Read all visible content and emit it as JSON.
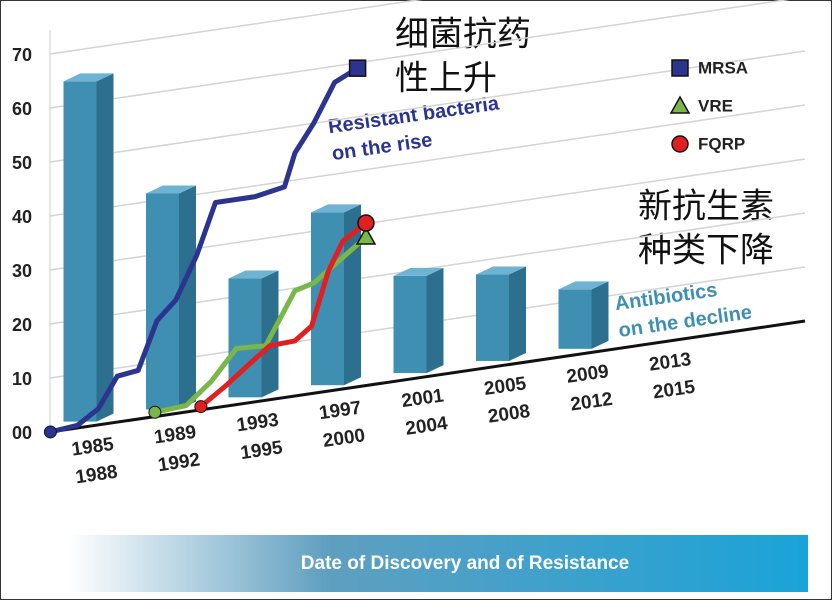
{
  "chart_data": {
    "type": "bar-line",
    "yticks": [
      {
        "value": 0,
        "label": "00"
      },
      10,
      20,
      30,
      40,
      50,
      60,
      70
    ],
    "ylim": [
      0,
      70
    ],
    "grid": true,
    "categories": [
      [
        "1985",
        "1988"
      ],
      [
        "1989",
        "1992"
      ],
      [
        "1993",
        "1995"
      ],
      [
        "1997",
        "2000"
      ],
      [
        "2001",
        "2004"
      ],
      [
        "2005",
        "2008"
      ],
      [
        "2009",
        "2012"
      ],
      [
        "2013",
        "2015"
      ]
    ],
    "bars": {
      "color": "#3f8fb3",
      "values": [
        63,
        40,
        22,
        32,
        18,
        16,
        11,
        null
      ]
    },
    "series": [
      {
        "name": "MRSA",
        "color": "#2b3590",
        "marker": "square",
        "x": [
          1983.2,
          1984.5,
          1985.5,
          1986.4,
          1987.4,
          1988.3,
          1989.2,
          1990.2,
          1991.1,
          1993,
          1994.4,
          1994.9,
          1995.8,
          1996.8,
          1997.9
        ],
        "values": [
          0,
          0.5,
          3,
          8.5,
          9,
          17.7,
          21,
          28.7,
          38,
          38,
          39,
          45,
          50,
          57,
          59
        ]
      },
      {
        "name": "VRE",
        "color": "#7ab648",
        "marker": "triangle",
        "x": [
          1988.2,
          1989.7,
          1990.9,
          1992.1,
          1993.5,
          1994.9,
          1995.8,
          1998.3
        ],
        "values": [
          0.8,
          1.2,
          5,
          10.4,
          10.1,
          19.5,
          20.4,
          27.5
        ]
      },
      {
        "name": "FQRP",
        "color": "#e02020",
        "marker": "circle",
        "x": [
          1990.4,
          1991.6,
          1992.8,
          1993.7,
          1994.9,
          1995.7,
          1996.5,
          1997.2,
          1998.3
        ],
        "values": [
          0.6,
          3.8,
          7.4,
          10,
          10.2,
          12.5,
          22.2,
          27.4,
          30.1
        ]
      }
    ],
    "annotations": {
      "resistance_cn": [
        "细菌抗药",
        "性上升"
      ],
      "resistance_en": [
        "Resistant bacteria",
        "on the rise"
      ],
      "decline_cn": [
        "新抗生素",
        "种类下降"
      ],
      "decline_en": [
        "Antibiotics",
        "on the decline"
      ]
    },
    "xlabel": "Date of Discovery and of Resistance"
  }
}
